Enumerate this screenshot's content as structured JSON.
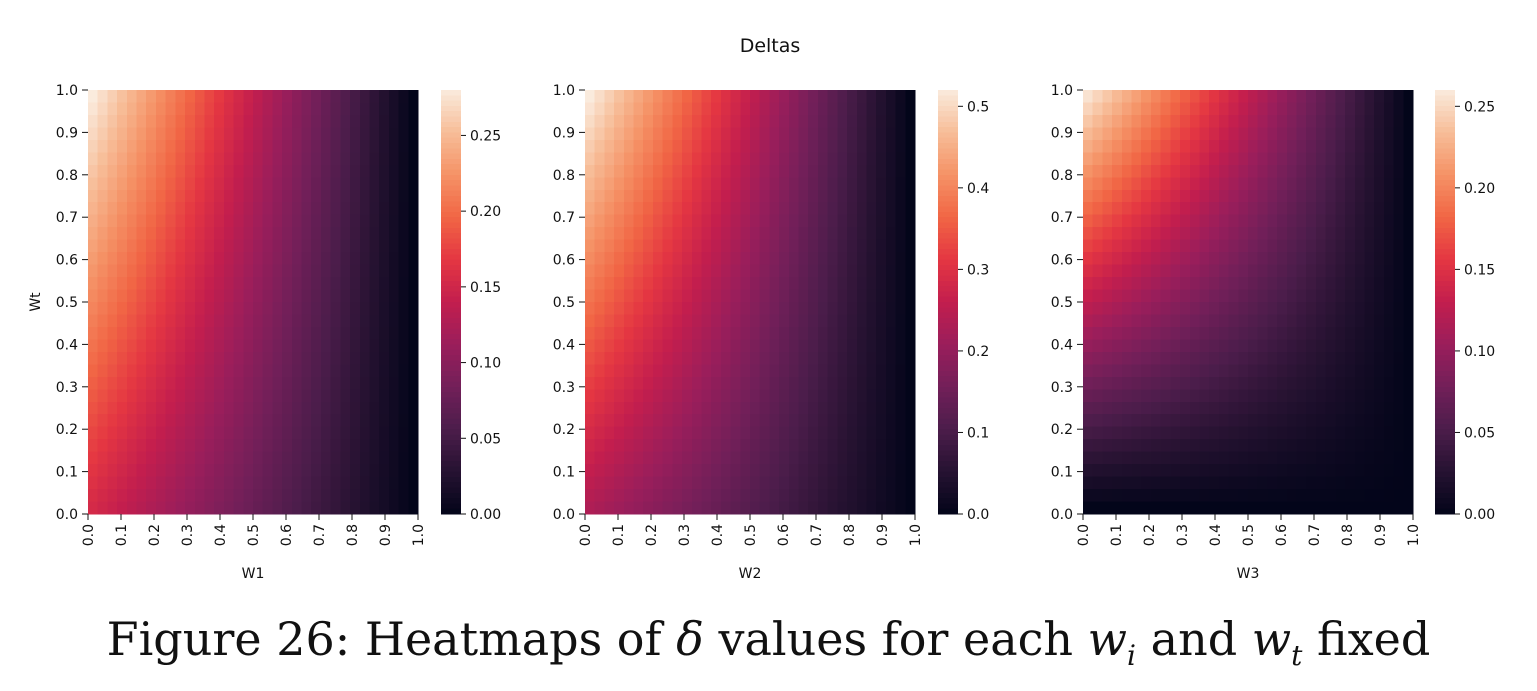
{
  "figure": {
    "suptitle": "Deltas"
  },
  "chart_data": [
    {
      "type": "heatmap",
      "xlabel": "W1",
      "ylabel": "Wt",
      "x_ticks": [
        "0.0",
        "0.1",
        "0.2",
        "0.3",
        "0.4",
        "0.5",
        "0.6",
        "0.7",
        "0.8",
        "0.9",
        "1.0"
      ],
      "y_ticks": [
        "0.0",
        "0.1",
        "0.2",
        "0.3",
        "0.4",
        "0.5",
        "0.6",
        "0.7",
        "0.8",
        "0.9",
        "1.0"
      ],
      "xlim": [
        0,
        1
      ],
      "ylim": [
        0,
        1
      ],
      "value_formula": "0.28 * (1 - w) * (0.55 + 0.45 * wt)",
      "vmin": 0,
      "vmax": 0.28,
      "colorbar_ticks": [
        "0.00",
        "0.05",
        "0.10",
        "0.15",
        "0.20",
        "0.25"
      ],
      "colormap": "rocket"
    },
    {
      "type": "heatmap",
      "xlabel": "W2",
      "ylabel": "",
      "x_ticks": [
        "0.0",
        "0.1",
        "0.2",
        "0.3",
        "0.4",
        "0.5",
        "0.6",
        "0.7",
        "0.8",
        "0.9",
        "1.0"
      ],
      "y_ticks": [
        "0.0",
        "0.1",
        "0.2",
        "0.3",
        "0.4",
        "0.5",
        "0.6",
        "0.7",
        "0.8",
        "0.9",
        "1.0"
      ],
      "xlim": [
        0,
        1
      ],
      "ylim": [
        0,
        1
      ],
      "value_formula": "0.52 * (1 - w) * (0.45 + 0.55 * wt)",
      "vmin": 0,
      "vmax": 0.52,
      "colorbar_ticks": [
        "0.0",
        "0.1",
        "0.2",
        "0.3",
        "0.4",
        "0.5"
      ],
      "colormap": "rocket"
    },
    {
      "type": "heatmap",
      "xlabel": "W3",
      "ylabel": "",
      "x_ticks": [
        "0.0",
        "0.1",
        "0.2",
        "0.3",
        "0.4",
        "0.5",
        "0.6",
        "0.7",
        "0.8",
        "0.9",
        "1.0"
      ],
      "y_ticks": [
        "0.0",
        "0.1",
        "0.2",
        "0.3",
        "0.4",
        "0.5",
        "0.6",
        "0.7",
        "0.8",
        "0.9",
        "1.0"
      ],
      "xlim": [
        0,
        1
      ],
      "ylim": [
        0,
        1
      ],
      "value_formula": "0.255 * (1 - w) * wt",
      "vmin": 0,
      "vmax": 0.26,
      "colorbar_ticks": [
        "0.00",
        "0.05",
        "0.10",
        "0.15",
        "0.20",
        "0.25"
      ],
      "colormap": "rocket"
    }
  ],
  "caption": {
    "prefix": "Figure 26: Heatmaps of ",
    "delta": "δ",
    "mid1": " values for each ",
    "w": "w",
    "i": "i",
    "mid2": " and ",
    "t": "t",
    "suffix": " fixed"
  }
}
